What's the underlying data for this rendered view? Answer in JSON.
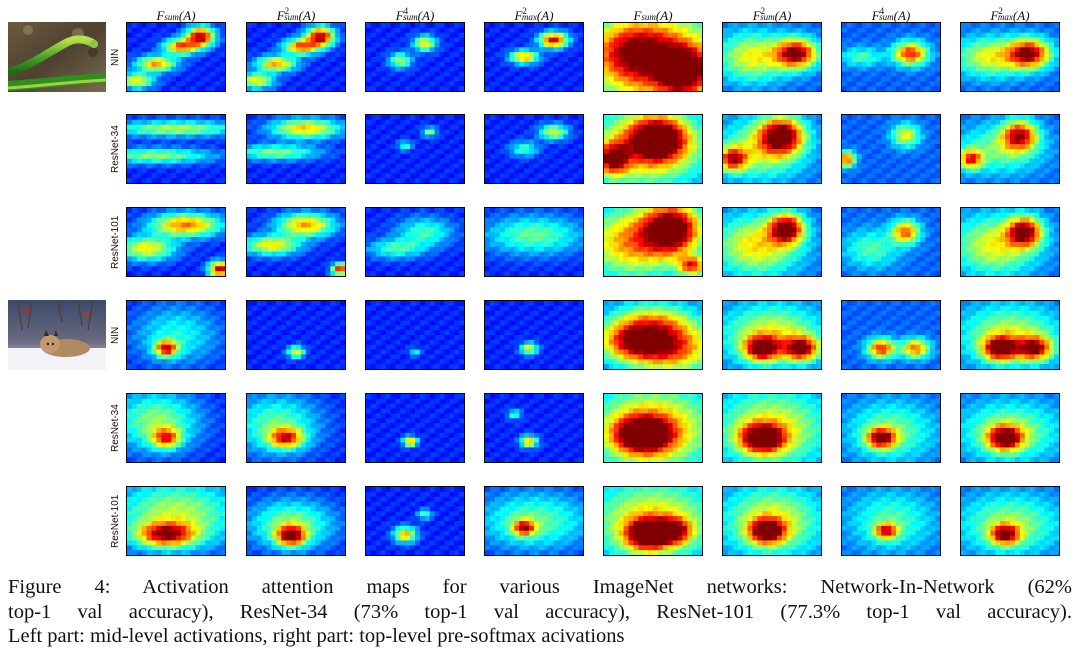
{
  "columns": [
    {
      "base": "F",
      "sub": "sum",
      "sup": "",
      "arg": "(A)"
    },
    {
      "base": "F",
      "sub": "sum",
      "sup": "2",
      "arg": "(A)"
    },
    {
      "base": "F",
      "sub": "sum",
      "sup": "4",
      "arg": "(A)"
    },
    {
      "base": "F",
      "sub": "max",
      "sup": "2",
      "arg": "(A)"
    },
    {
      "base": "F",
      "sub": "sum",
      "sup": "",
      "arg": "(A)"
    },
    {
      "base": "F",
      "sub": "sum",
      "sup": "2",
      "arg": "(A)"
    },
    {
      "base": "F",
      "sub": "sum",
      "sup": "4",
      "arg": "(A)"
    },
    {
      "base": "F",
      "sub": "max",
      "sup": "2",
      "arg": "(A)"
    }
  ],
  "rows": [
    {
      "label": "NIN"
    },
    {
      "label": "ResNet-34"
    },
    {
      "label": "ResNet-101"
    },
    {
      "label": "NIN"
    },
    {
      "label": "ResNet-34"
    },
    {
      "label": "ResNet-101"
    }
  ],
  "images": [
    {
      "subject": "green-snake"
    },
    {
      "subject": "lynx-on-snow"
    }
  ],
  "caption": {
    "line1": "Figure 4: Activation attention maps for various ImageNet networks: Network-In-Network (62%",
    "line2": "top-1 val accuracy), ResNet-34 (73% top-1 val accuracy), ResNet-101 (77.3% top-1 val accuracy).",
    "line3": "Left part: mid-level activations, right part: top-level pre-softmax acivations"
  }
}
